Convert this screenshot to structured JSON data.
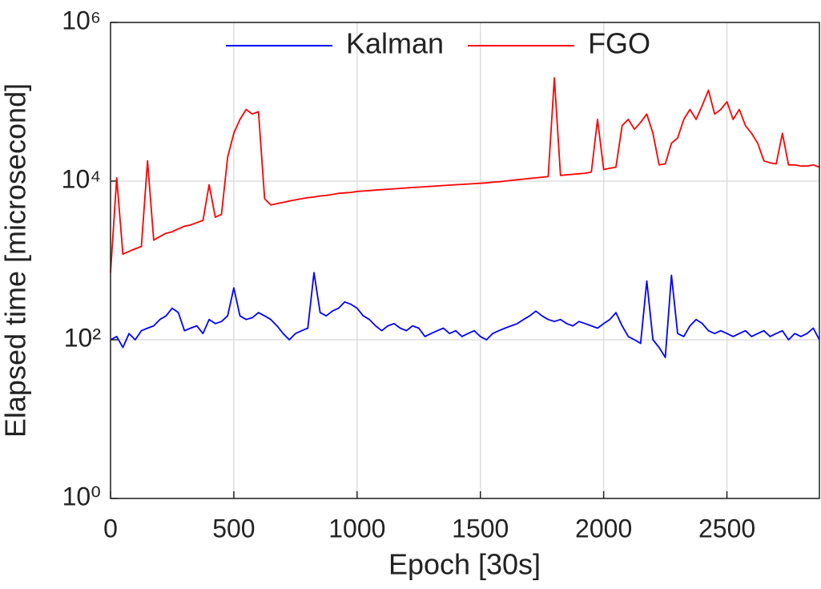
{
  "chart_data": {
    "type": "line",
    "xlabel": "Epoch [30s]",
    "ylabel": "Elapsed time [microsecond]",
    "x": [
      0,
      25,
      50,
      75,
      100,
      125,
      150,
      175,
      200,
      225,
      250,
      275,
      300,
      325,
      350,
      375,
      400,
      425,
      450,
      475,
      500,
      525,
      550,
      575,
      600,
      625,
      650,
      675,
      700,
      725,
      750,
      775,
      800,
      825,
      850,
      875,
      900,
      925,
      950,
      975,
      1000,
      1025,
      1050,
      1075,
      1100,
      1125,
      1150,
      1175,
      1200,
      1225,
      1250,
      1275,
      1300,
      1325,
      1350,
      1375,
      1400,
      1425,
      1450,
      1475,
      1500,
      1525,
      1550,
      1575,
      1600,
      1625,
      1650,
      1675,
      1700,
      1725,
      1750,
      1775,
      1800,
      1825,
      1850,
      1875,
      1900,
      1925,
      1950,
      1975,
      2000,
      2025,
      2050,
      2075,
      2100,
      2125,
      2150,
      2175,
      2200,
      2225,
      2250,
      2275,
      2300,
      2325,
      2350,
      2375,
      2400,
      2425,
      2450,
      2475,
      2500,
      2525,
      2550,
      2575,
      2600,
      2625,
      2650,
      2675,
      2700,
      2725,
      2750,
      2775,
      2800,
      2825,
      2850,
      2875
    ],
    "series": [
      {
        "name": "Kalman",
        "color": "#0000ff",
        "values": [
          100,
          110,
          80,
          120,
          100,
          130,
          140,
          150,
          180,
          200,
          250,
          220,
          130,
          140,
          150,
          120,
          180,
          160,
          170,
          200,
          450,
          200,
          180,
          190,
          220,
          200,
          180,
          150,
          120,
          100,
          120,
          130,
          140,
          700,
          220,
          200,
          230,
          250,
          300,
          280,
          250,
          200,
          180,
          150,
          130,
          150,
          160,
          140,
          130,
          150,
          140,
          110,
          120,
          130,
          140,
          120,
          130,
          110,
          120,
          130,
          110,
          100,
          120,
          130,
          140,
          150,
          160,
          180,
          200,
          230,
          200,
          180,
          170,
          180,
          160,
          150,
          170,
          160,
          150,
          140,
          160,
          180,
          220,
          150,
          110,
          100,
          90,
          550,
          100,
          80,
          60,
          650,
          120,
          110,
          150,
          180,
          160,
          130,
          120,
          130,
          120,
          110,
          120,
          130,
          110,
          120,
          130,
          110,
          120,
          130,
          100,
          120,
          110,
          120,
          140,
          100
        ]
      },
      {
        "name": "FGO",
        "color": "#ff0000",
        "values": [
          700,
          11000,
          1200,
          1300,
          1400,
          1500,
          18000,
          1800,
          2000,
          2200,
          2300,
          2500,
          2700,
          2800,
          3000,
          3200,
          9000,
          3500,
          3800,
          20000,
          40000,
          60000,
          80000,
          70000,
          75000,
          6000,
          5000,
          5200,
          5400,
          5600,
          5800,
          6000,
          6200,
          6300,
          6500,
          6600,
          6800,
          7000,
          7100,
          7200,
          7400,
          7500,
          7600,
          7700,
          7800,
          7900,
          8000,
          8100,
          8200,
          8300,
          8400,
          8500,
          8600,
          8700,
          8800,
          8900,
          9000,
          9100,
          9200,
          9300,
          9400,
          9500,
          9700,
          9800,
          10000,
          10200,
          10400,
          10600,
          10800,
          11000,
          11200,
          11400,
          200000,
          11800,
          12000,
          12200,
          12400,
          12600,
          13000,
          60000,
          14000,
          14500,
          15000,
          50000,
          60000,
          45000,
          55000,
          70000,
          40000,
          16000,
          16500,
          30000,
          35000,
          60000,
          80000,
          60000,
          90000,
          140000,
          70000,
          80000,
          100000,
          60000,
          80000,
          50000,
          40000,
          30000,
          18000,
          17000,
          16500,
          40000,
          16000,
          16000,
          15500,
          15500,
          16000,
          15000
        ]
      }
    ],
    "xlim": [
      0,
      2875
    ],
    "xticks": [
      0,
      500,
      1000,
      1500,
      2000,
      2500
    ],
    "ylim": [
      1,
      1000000
    ],
    "ylog": true,
    "yticks": [
      {
        "value": 1,
        "label": "10⁰"
      },
      {
        "value": 100,
        "label": "10²"
      },
      {
        "value": 10000,
        "label": "10⁴"
      },
      {
        "value": 1000000,
        "label": "10⁶"
      }
    ],
    "grid": true,
    "legend": "top"
  }
}
